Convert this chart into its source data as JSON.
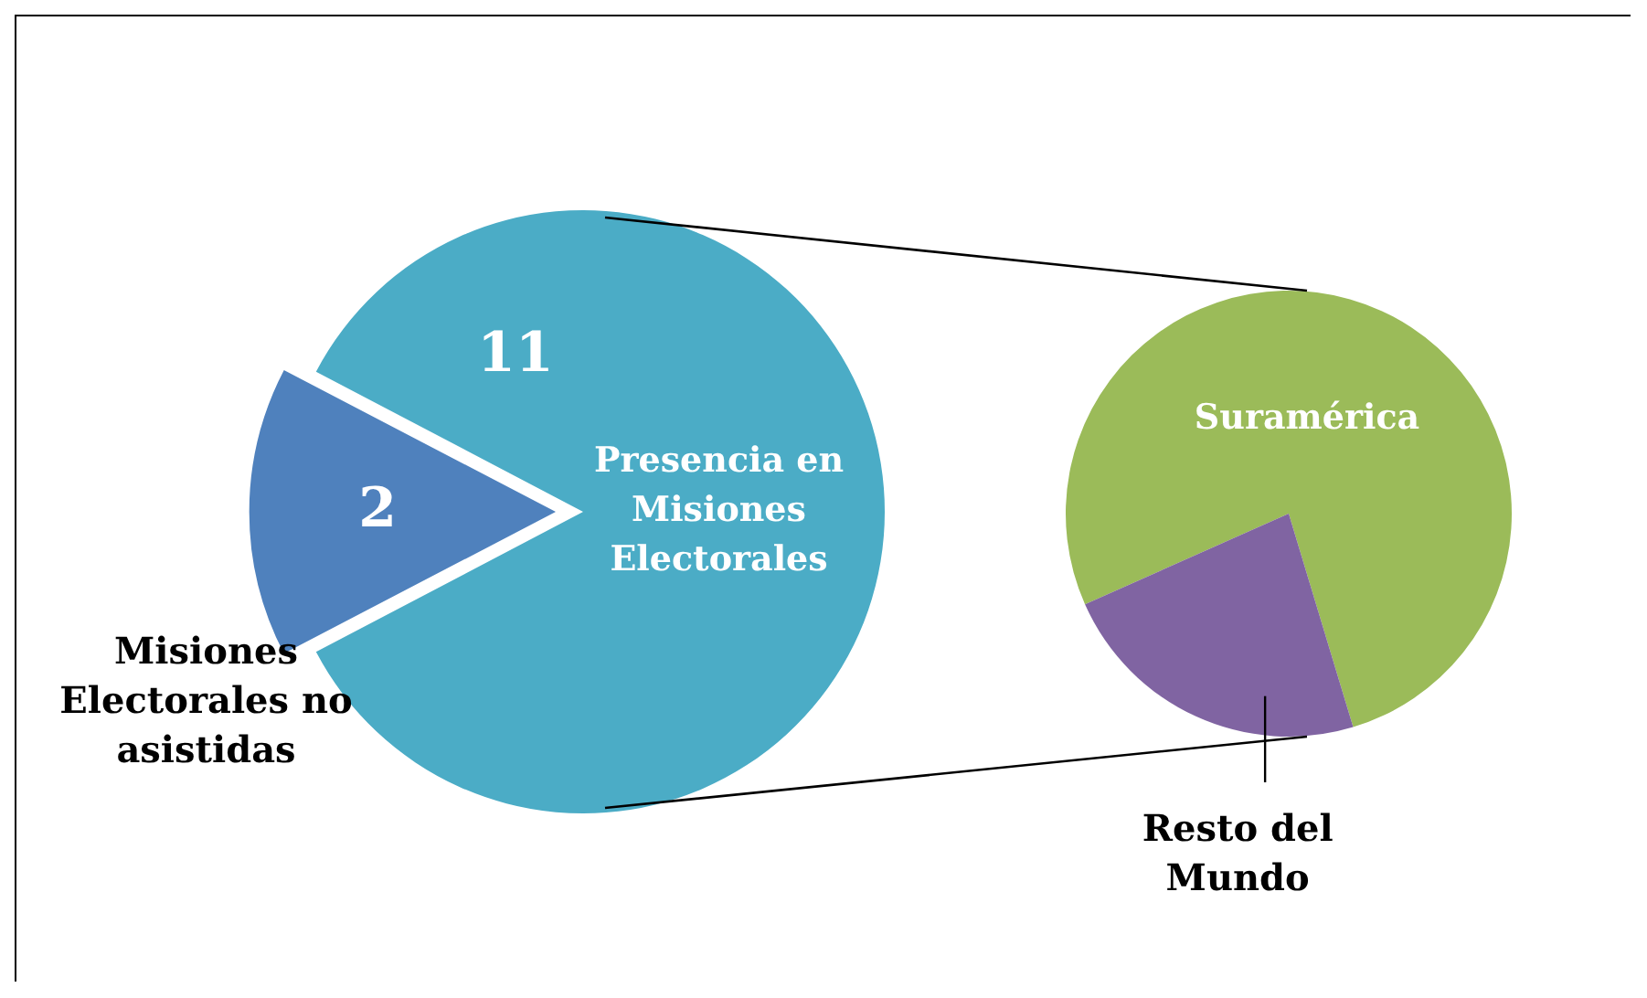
{
  "chart_data": [
    {
      "type": "pie",
      "categories": [
        "Misiones Electorales no asistidas",
        "Presencia en Misiones Electorales"
      ],
      "values": [
        2,
        11
      ],
      "colors": [
        "#4f81bd",
        "#4bacc6"
      ],
      "data_labels": true
    },
    {
      "type": "pie",
      "categories": [
        "Suramérica",
        "Resto del Mundo"
      ],
      "values": [
        77,
        23
      ],
      "colors": [
        "#9bbb59",
        "#8064a2"
      ]
    }
  ]
}
